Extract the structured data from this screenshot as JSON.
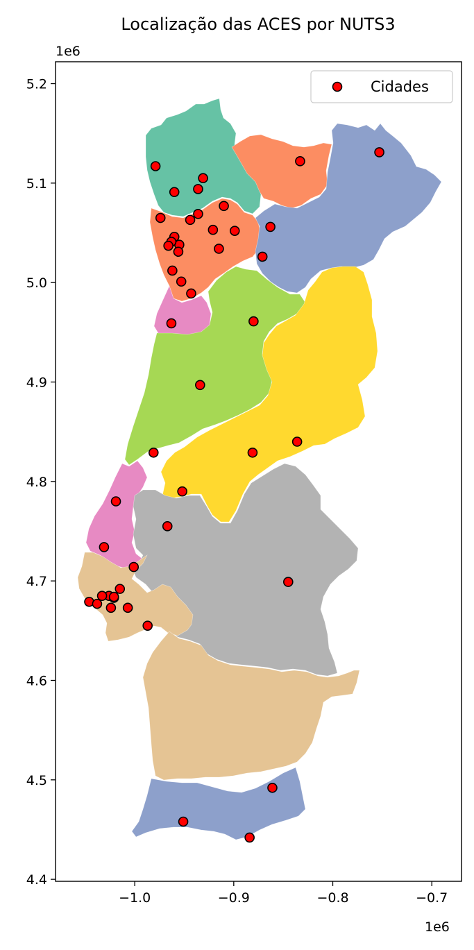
{
  "title": "Localização das ACES por NUTS3",
  "x_offset_label": "1e6",
  "y_offset_label": "1e6",
  "x_ticks": [
    "−1.0",
    "−0.9",
    "−0.8",
    "−0.7"
  ],
  "y_ticks": [
    "4.4",
    "4.5",
    "4.6",
    "4.7",
    "4.8",
    "4.9",
    "5.0",
    "5.1",
    "5.2"
  ],
  "legend": {
    "label": "Cidades",
    "marker_color": "#ff0000",
    "marker_edge": "#000000"
  },
  "region_colors": {
    "alto_minho_cavado": "#66c2a5",
    "tamega_douro_porto": "#fc8d62",
    "terras_tras_os_montes": "#8da0cb",
    "beira_baixa_beiras": "#ffd92f",
    "centro_litoral": "#a6d854",
    "leiria_aveiro_oeste": "#e78ac3",
    "alentejo": "#b3b3b3",
    "lisboa_alentejo_litoral": "#e5c494",
    "algarve": "#8da0cb"
  },
  "chart_data": {
    "type": "scatter",
    "title": "Localização das ACES por NUTS3",
    "xlim": [
      -1.08,
      -0.67
    ],
    "ylim": [
      4.398,
      5.222
    ],
    "x_scale_note": "1e6",
    "legend_position": "upper right",
    "series": [
      {
        "name": "Cidades",
        "x": [
          -0.753,
          -0.833,
          -0.979,
          -0.931,
          -0.936,
          -0.96,
          -0.91,
          -0.936,
          -0.974,
          -0.944,
          -0.863,
          -0.921,
          -0.899,
          -0.96,
          -0.955,
          -0.963,
          -0.966,
          -0.915,
          -0.956,
          -0.871,
          -0.962,
          -0.953,
          -0.943,
          -0.88,
          -0.963,
          -0.934,
          -0.981,
          -0.881,
          -0.836,
          -0.952,
          -1.019,
          -0.967,
          -1.031,
          -1.001,
          -0.845,
          -1.015,
          -1.026,
          -1.021,
          -1.033,
          -1.046,
          -1.038,
          -1.021,
          -1.024,
          -1.007,
          -0.987,
          -0.861,
          -0.951,
          -0.884
        ],
        "y": [
          5.131,
          5.122,
          5.117,
          5.105,
          5.094,
          5.091,
          5.077,
          5.069,
          5.065,
          5.063,
          5.056,
          5.053,
          5.052,
          5.046,
          5.038,
          5.041,
          5.037,
          5.034,
          5.031,
          5.026,
          5.012,
          5.001,
          4.989,
          4.961,
          4.959,
          4.897,
          4.829,
          4.829,
          4.84,
          4.79,
          4.78,
          4.755,
          4.734,
          4.714,
          4.699,
          4.692,
          4.685,
          4.683,
          4.685,
          4.679,
          4.677,
          4.684,
          4.673,
          4.673,
          4.655,
          4.492,
          4.458,
          4.442
        ]
      }
    ]
  }
}
